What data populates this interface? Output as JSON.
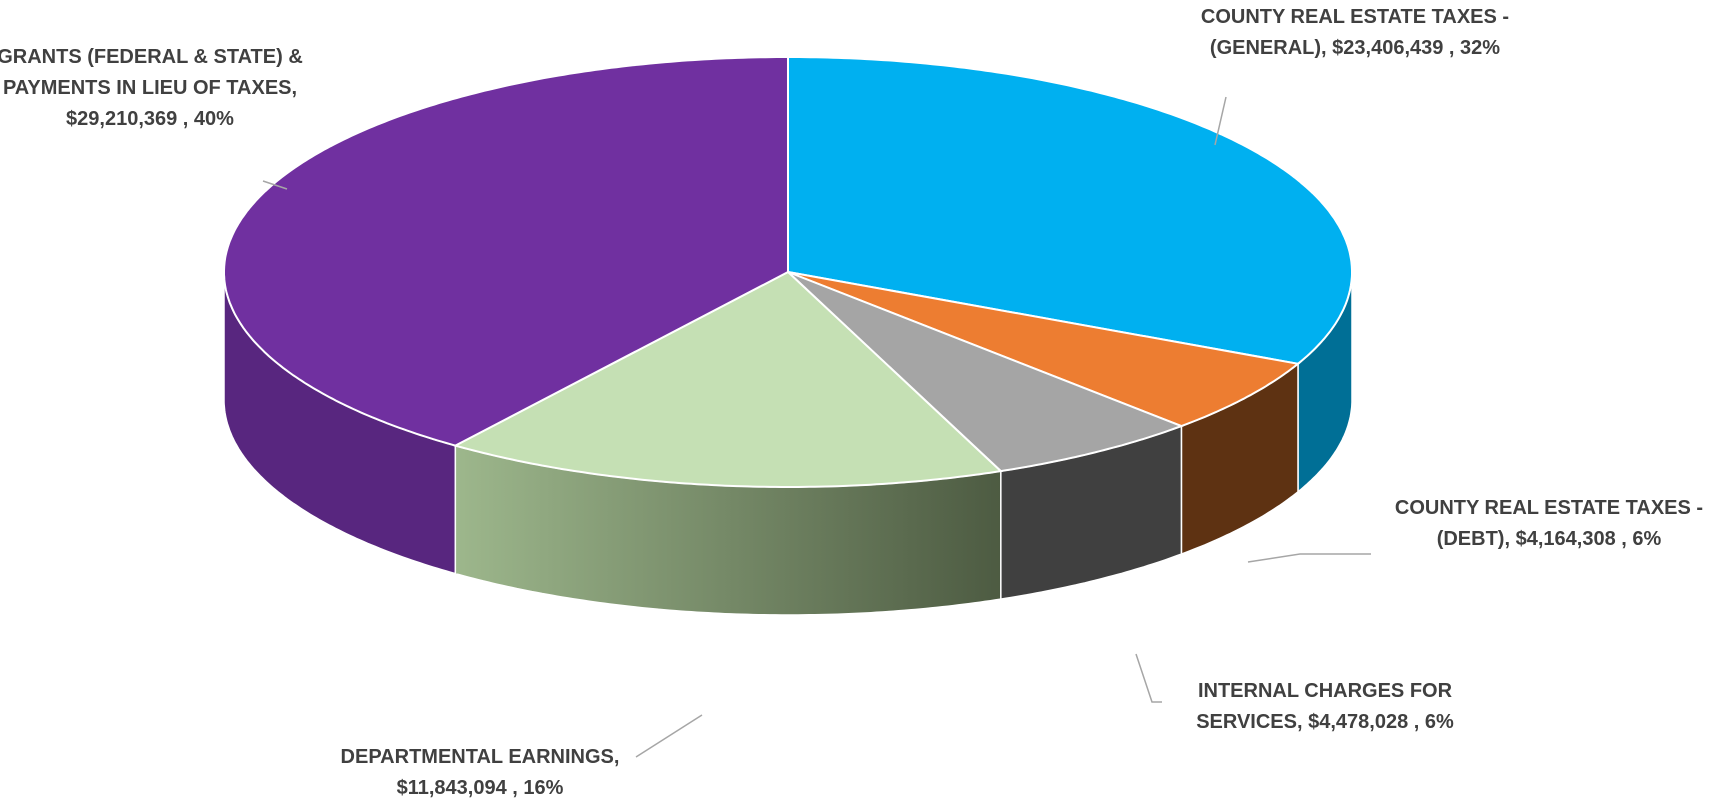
{
  "chart_data": {
    "type": "pie",
    "categories": [
      "COUNTY REAL ESTATE TAXES - (GENERAL),",
      "COUNTY REAL ESTATE TAXES - (DEBT),",
      "INTERNAL CHARGES FOR SERVICES,",
      "DEPARTMENTAL EARNINGS,",
      "GRANTS (FEDERAL & STATE) & PAYMENTS IN LIEU OF TAXES,"
    ],
    "values": [
      23406439,
      4164308,
      4478028,
      11843094,
      29210369
    ],
    "value_labels": [
      "$23,406,439 , 32%",
      "$4,164,308 , 6%",
      "$4,478,028 , 6%",
      "$11,843,094 , 16%",
      "$29,210,369 , 40%"
    ],
    "colors": [
      "#00b0f0",
      "#ed7d31",
      "#a5a5a5",
      "#c5e0b4",
      "#7030a0"
    ]
  }
}
